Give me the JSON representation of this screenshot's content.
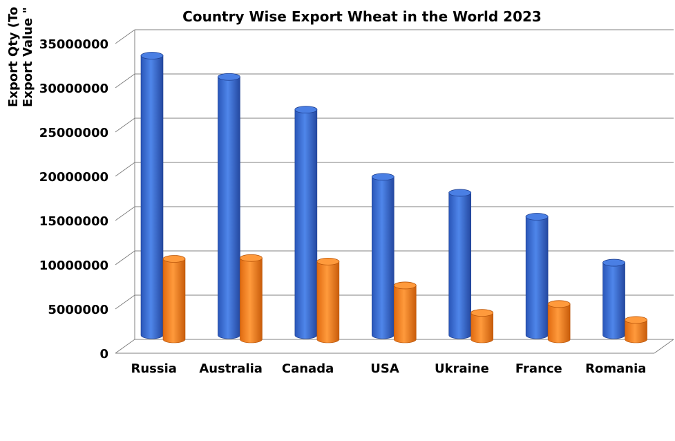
{
  "chart_data": {
    "type": "bar",
    "title": "Country Wise Export Wheat in the World 2023",
    "ylabel_lines": [
      "Export Qty (To",
      "Export Value \""
    ],
    "categories": [
      "Russia",
      "Australia",
      "Canada",
      "USA",
      "Ukraine",
      "France",
      "Romania"
    ],
    "series": [
      {
        "values": [
          31600000,
          29200000,
          25500000,
          17900000,
          16100000,
          13400000,
          8200000
        ],
        "color": "#3b6fd8"
      },
      {
        "values": [
          9100000,
          9200000,
          8800000,
          6100000,
          3000000,
          4000000,
          2200000
        ],
        "color": "#ff8a28"
      }
    ],
    "ylim": [
      0,
      35000000
    ],
    "yticks": [
      "0",
      "5000000",
      "10000000",
      "15000000",
      "20000000",
      "25000000",
      "30000000",
      "35000000"
    ],
    "grid": true,
    "legend": "none",
    "style": "3d-cylinder"
  }
}
